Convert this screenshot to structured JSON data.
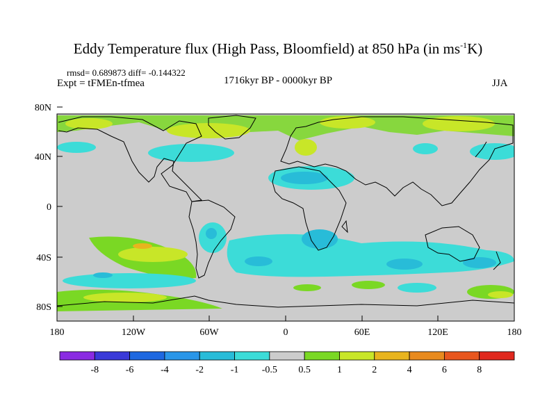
{
  "title": {
    "main": "Eddy Temperature flux (High Pass, Bloomfield) at 850 hPa (in ms",
    "exponent": "-1",
    "unit_end": "K)"
  },
  "stats": "rmsd= 0.689873 diff= -0.144322",
  "experiment": "Expt = tFMEn-tfmea",
  "period": "1716kyr BP - 0000kyr BP",
  "season": "JJA",
  "lat_ticks": [
    "80N",
    "40N",
    "0",
    "40S",
    "80S"
  ],
  "lon_ticks": [
    "180",
    "120W",
    "60W",
    "0",
    "60E",
    "120E",
    "180"
  ],
  "colorbar": {
    "labels": [
      "-8",
      "-6",
      "-4",
      "-2",
      "-1",
      "-0.5",
      "0.5",
      "1",
      "2",
      "4",
      "6",
      "8"
    ],
    "colors": [
      "#8a2be2",
      "#3a3ad8",
      "#1e68e0",
      "#2a96e8",
      "#28bcd8",
      "#3cdcd8",
      "#cccccc",
      "#7ad824",
      "#c8e628",
      "#e8b41e",
      "#e88a1e",
      "#e8561e",
      "#e0281e"
    ]
  },
  "map": {
    "background": "#cccccc",
    "outline": "#000000"
  }
}
